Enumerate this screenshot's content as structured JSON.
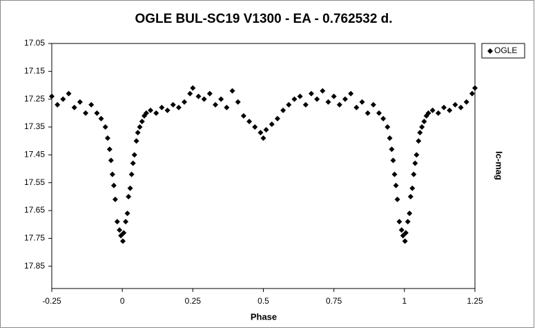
{
  "chart_data": {
    "type": "scatter",
    "title": "OGLE BUL-SC19 V1300 - EA - 0.762532 d.",
    "x_label": "Phase",
    "y_label": "Ic-mag",
    "xlim": [
      -0.25,
      1.25
    ],
    "xticks": [
      -0.25,
      0,
      0.25,
      0.5,
      0.75,
      1,
      1.25
    ],
    "ylim": [
      17.05,
      17.93
    ],
    "yticks": [
      17.05,
      17.15,
      17.25,
      17.35,
      17.45,
      17.55,
      17.65,
      17.75,
      17.85
    ],
    "y_reversed": true,
    "grid": false,
    "legend": "right",
    "series": [
      {
        "name": "OGLE",
        "color": "#000000",
        "x": [
          -0.25,
          -0.23,
          -0.21,
          -0.19,
          -0.17,
          -0.15,
          -0.13,
          -0.11,
          -0.09,
          -0.075,
          -0.06,
          -0.052,
          -0.045,
          -0.04,
          -0.035,
          -0.03,
          -0.025,
          -0.018,
          -0.01,
          -0.005,
          0.002,
          0.005,
          0.012,
          0.018,
          0.022,
          0.028,
          0.033,
          0.038,
          0.043,
          0.05,
          0.055,
          0.062,
          0.07,
          0.078,
          0.085,
          0.1,
          0.12,
          0.14,
          0.16,
          0.18,
          0.2,
          0.22,
          0.24,
          0.25,
          0.27,
          0.29,
          0.31,
          0.33,
          0.35,
          0.37,
          0.39,
          0.41,
          0.43,
          0.45,
          0.47,
          0.49,
          0.5,
          0.51,
          0.53,
          0.55,
          0.57,
          0.59,
          0.61,
          0.63,
          0.65,
          0.67,
          0.69,
          0.71,
          0.73,
          0.75,
          0.77,
          0.79,
          0.81,
          0.83,
          0.85,
          0.87,
          0.89,
          0.91,
          0.925,
          0.94,
          0.948,
          0.955,
          0.96,
          0.965,
          0.97,
          0.975,
          0.982,
          0.99,
          0.995,
          1.002,
          1.005,
          1.012,
          1.018,
          1.022,
          1.028,
          1.033,
          1.038,
          1.043,
          1.05,
          1.055,
          1.062,
          1.07,
          1.078,
          1.085,
          1.1,
          1.12,
          1.14,
          1.16,
          1.18,
          1.2,
          1.22,
          1.24,
          1.25
        ],
        "values": [
          17.24,
          17.27,
          17.25,
          17.23,
          17.28,
          17.26,
          17.3,
          17.27,
          17.3,
          17.32,
          17.35,
          17.39,
          17.43,
          17.47,
          17.52,
          17.56,
          17.61,
          17.69,
          17.72,
          17.74,
          17.76,
          17.73,
          17.69,
          17.66,
          17.6,
          17.57,
          17.52,
          17.48,
          17.45,
          17.4,
          17.37,
          17.35,
          17.33,
          17.31,
          17.3,
          17.29,
          17.3,
          17.28,
          17.29,
          17.27,
          17.28,
          17.26,
          17.23,
          17.21,
          17.24,
          17.25,
          17.23,
          17.27,
          17.25,
          17.28,
          17.22,
          17.26,
          17.31,
          17.33,
          17.35,
          17.37,
          17.39,
          17.36,
          17.34,
          17.32,
          17.29,
          17.27,
          17.25,
          17.24,
          17.27,
          17.23,
          17.25,
          17.22,
          17.26,
          17.24,
          17.27,
          17.25,
          17.23,
          17.28,
          17.26,
          17.3,
          17.27,
          17.3,
          17.32,
          17.35,
          17.39,
          17.43,
          17.47,
          17.52,
          17.56,
          17.61,
          17.69,
          17.72,
          17.74,
          17.76,
          17.73,
          17.69,
          17.66,
          17.6,
          17.57,
          17.52,
          17.48,
          17.45,
          17.4,
          17.37,
          17.35,
          17.33,
          17.31,
          17.3,
          17.29,
          17.3,
          17.28,
          17.29,
          17.27,
          17.28,
          17.26,
          17.23,
          17.21
        ]
      }
    ]
  }
}
